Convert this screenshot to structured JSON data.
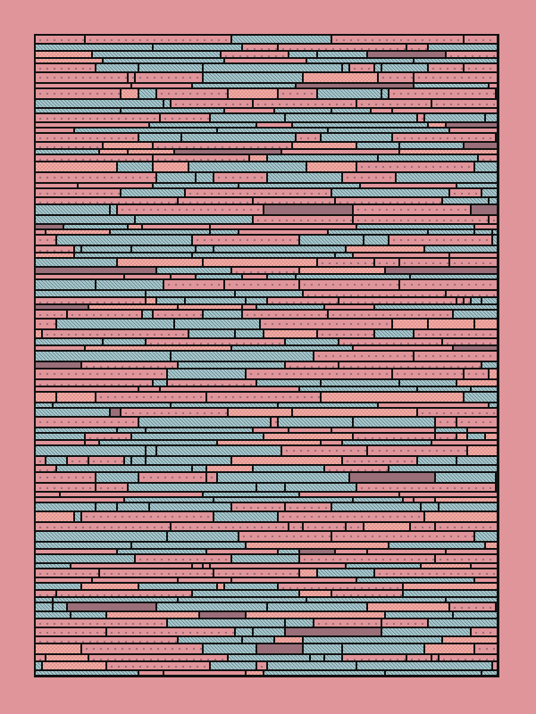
{
  "artwork": {
    "style": "pixel-art horizontal bands with dithered fills",
    "colors": {
      "background": "#e0959a",
      "outline": "#111111",
      "teal_light": "#a3c6ca",
      "teal_dark": "#6f8590",
      "pink": "#e0959a",
      "pink_dot": "#9a6e78",
      "salmon_light": "#f4ad9c",
      "mauve": "#9a6f7a"
    }
  }
}
